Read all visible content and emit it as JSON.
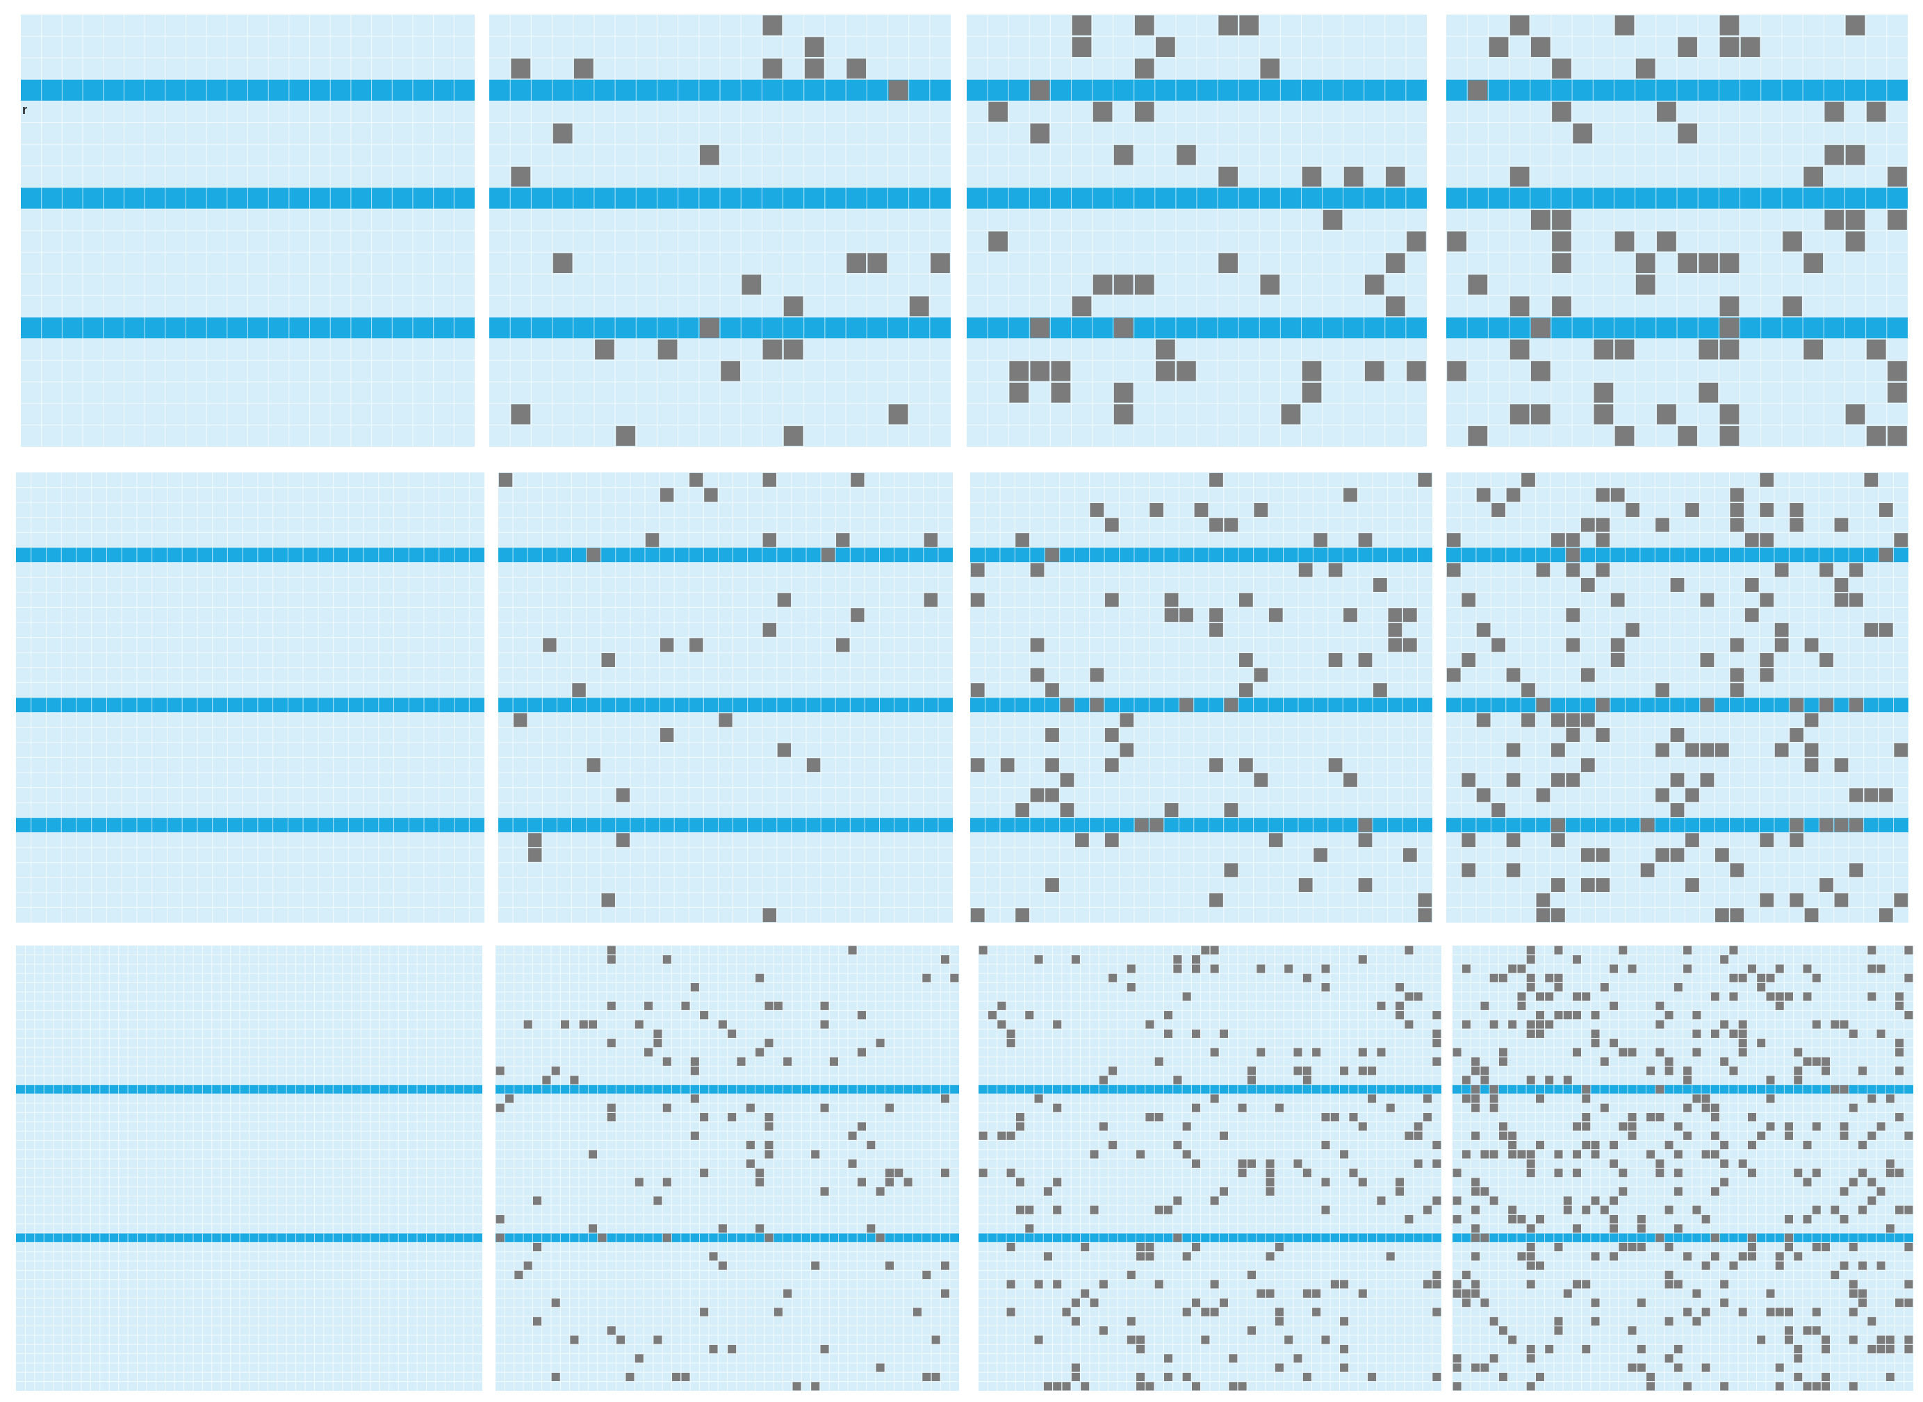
{
  "annotation": "r"
}
